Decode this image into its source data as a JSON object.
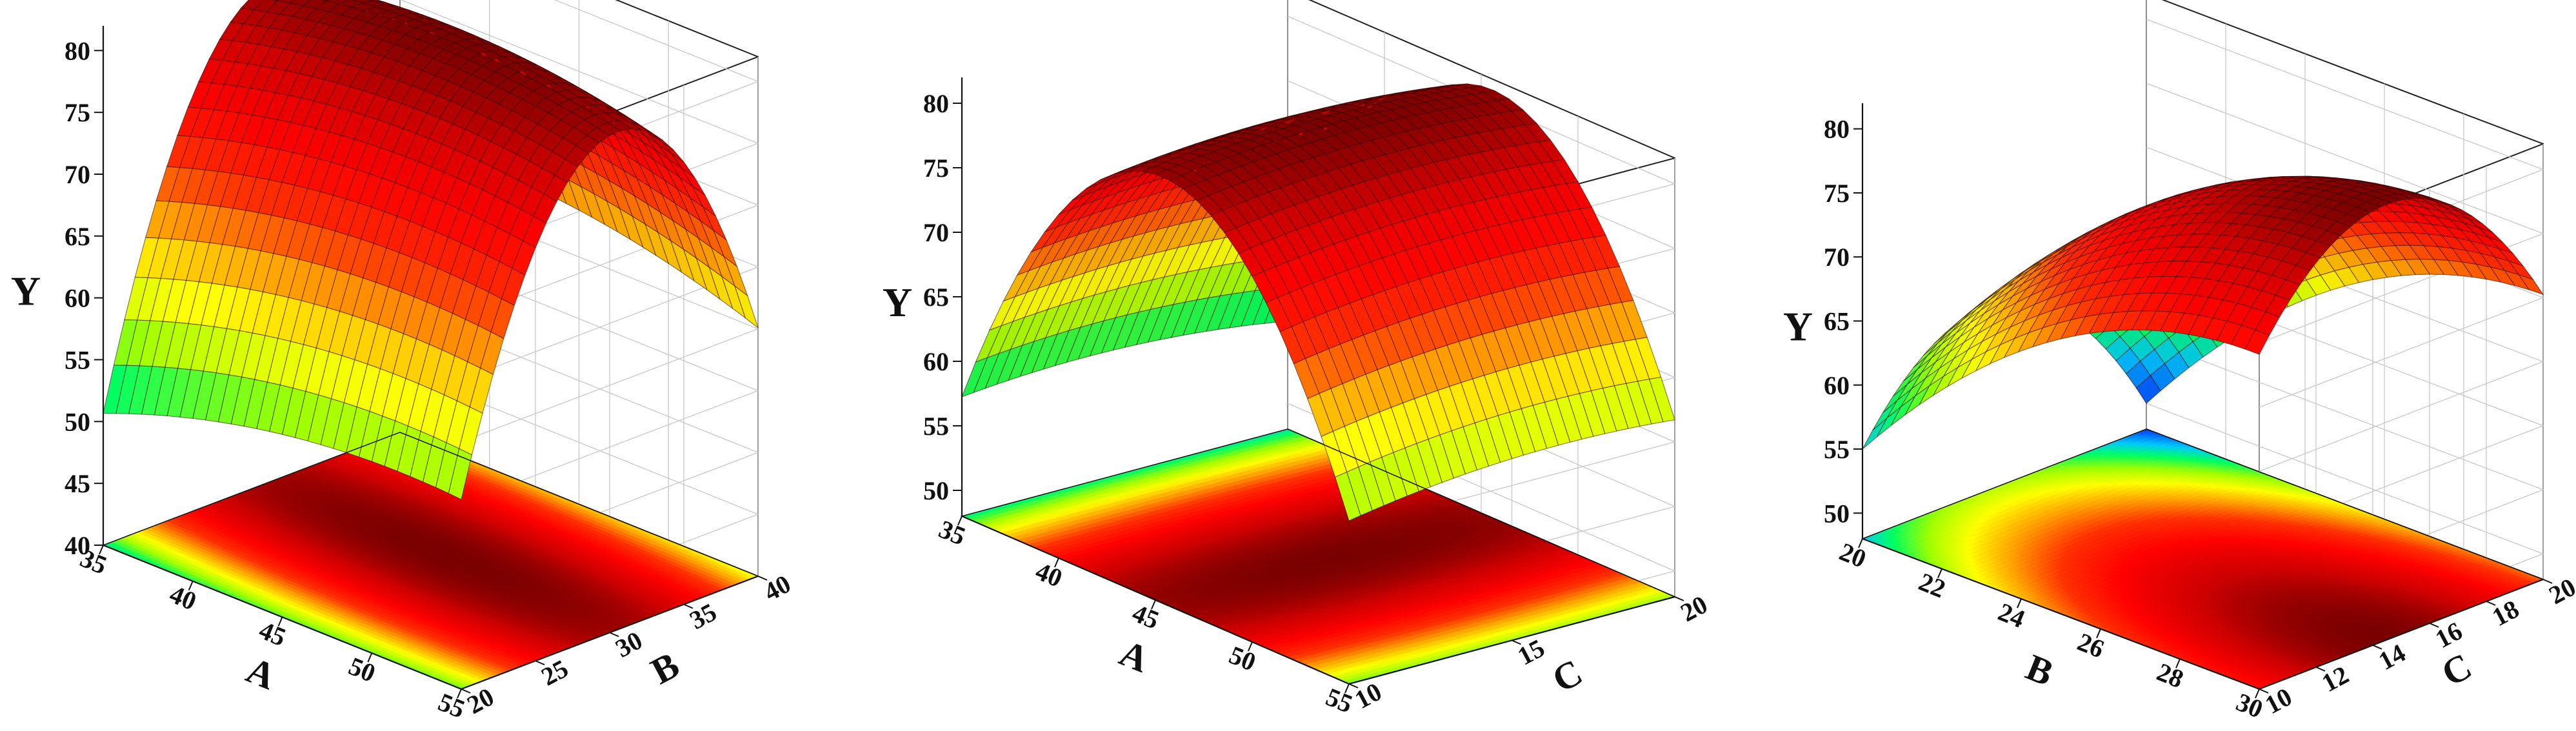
{
  "chart_data": [
    {
      "type": "surface",
      "x": {
        "label": "A",
        "range": [
          35,
          55
        ],
        "ticks": [
          "35",
          "40",
          "45",
          "50",
          "55"
        ]
      },
      "y": {
        "label": "B",
        "range": [
          20,
          40
        ],
        "ticks": [
          "20",
          "25",
          "30",
          "35",
          "40"
        ]
      },
      "z": {
        "label": "Y",
        "range": [
          40,
          82
        ],
        "ticks": [
          "40",
          "45",
          "50",
          "55",
          "60",
          "65",
          "70",
          "75",
          "80"
        ]
      },
      "surface": {
        "optimum": [
          45,
          31
        ],
        "z_max": 82,
        "z_at_corners": {
          "x_min_y_min": 45,
          "x_min_y_max": 57,
          "x_max_y_min": 61,
          "x_max_y_max": 67
        }
      },
      "contour_projection": true,
      "colormap": [
        "#3000ff",
        "#0060ff",
        "#00c8ff",
        "#00ff60",
        "#a0ff00",
        "#ffff00",
        "#ffa000",
        "#ff3000",
        "#ff0000",
        "#d00000",
        "#7a0000"
      ]
    },
    {
      "type": "surface",
      "x": {
        "label": "A",
        "range": [
          35,
          55
        ],
        "ticks": [
          "35",
          "40",
          "45",
          "50",
          "55"
        ]
      },
      "y": {
        "label": "C",
        "range": [
          10,
          20
        ],
        "ticks": [
          "10",
          "15",
          "20"
        ]
      },
      "z": {
        "label": "Y",
        "range": [
          48,
          82
        ],
        "ticks": [
          "50",
          "55",
          "60",
          "65",
          "70",
          "75",
          "80"
        ]
      },
      "surface": {
        "optimum": [
          45.5,
          15.2
        ],
        "z_max": 82,
        "z_at_corners": {
          "x_min_y_min": 52,
          "x_min_y_max": 57,
          "x_max_y_min": 60,
          "x_max_y_max": 68
        }
      },
      "contour_projection": true,
      "colormap": [
        "#3000ff",
        "#0060ff",
        "#00c8ff",
        "#00ff60",
        "#a0ff00",
        "#ffff00",
        "#ffa000",
        "#ff3000",
        "#ff0000",
        "#d00000",
        "#7a0000"
      ]
    },
    {
      "type": "surface",
      "x": {
        "label": "B",
        "range": [
          20,
          30
        ],
        "ticks": [
          "20",
          "22",
          "24",
          "26",
          "28",
          "30"
        ]
      },
      "y": {
        "label": "C",
        "range": [
          10,
          20
        ],
        "ticks": [
          "10",
          "12",
          "14",
          "16",
          "18",
          "20"
        ]
      },
      "z": {
        "label": "Y",
        "range": [
          48,
          82
        ],
        "ticks": [
          "50",
          "55",
          "60",
          "65",
          "70",
          "75",
          "80"
        ]
      },
      "surface": {
        "optimum": [
          30,
          14.5
        ],
        "z_max": 82,
        "z_at_corners": {
          "x_min_y_min": 55,
          "x_min_y_max": 50,
          "x_max_y_min": 73,
          "x_max_y_max": 71
        }
      },
      "contour_projection": true,
      "colormap": [
        "#3000ff",
        "#0060ff",
        "#00c8ff",
        "#00ff60",
        "#a0ff00",
        "#ffff00",
        "#ffa000",
        "#ff3000",
        "#ff0000",
        "#d00000",
        "#7a0000"
      ]
    }
  ]
}
